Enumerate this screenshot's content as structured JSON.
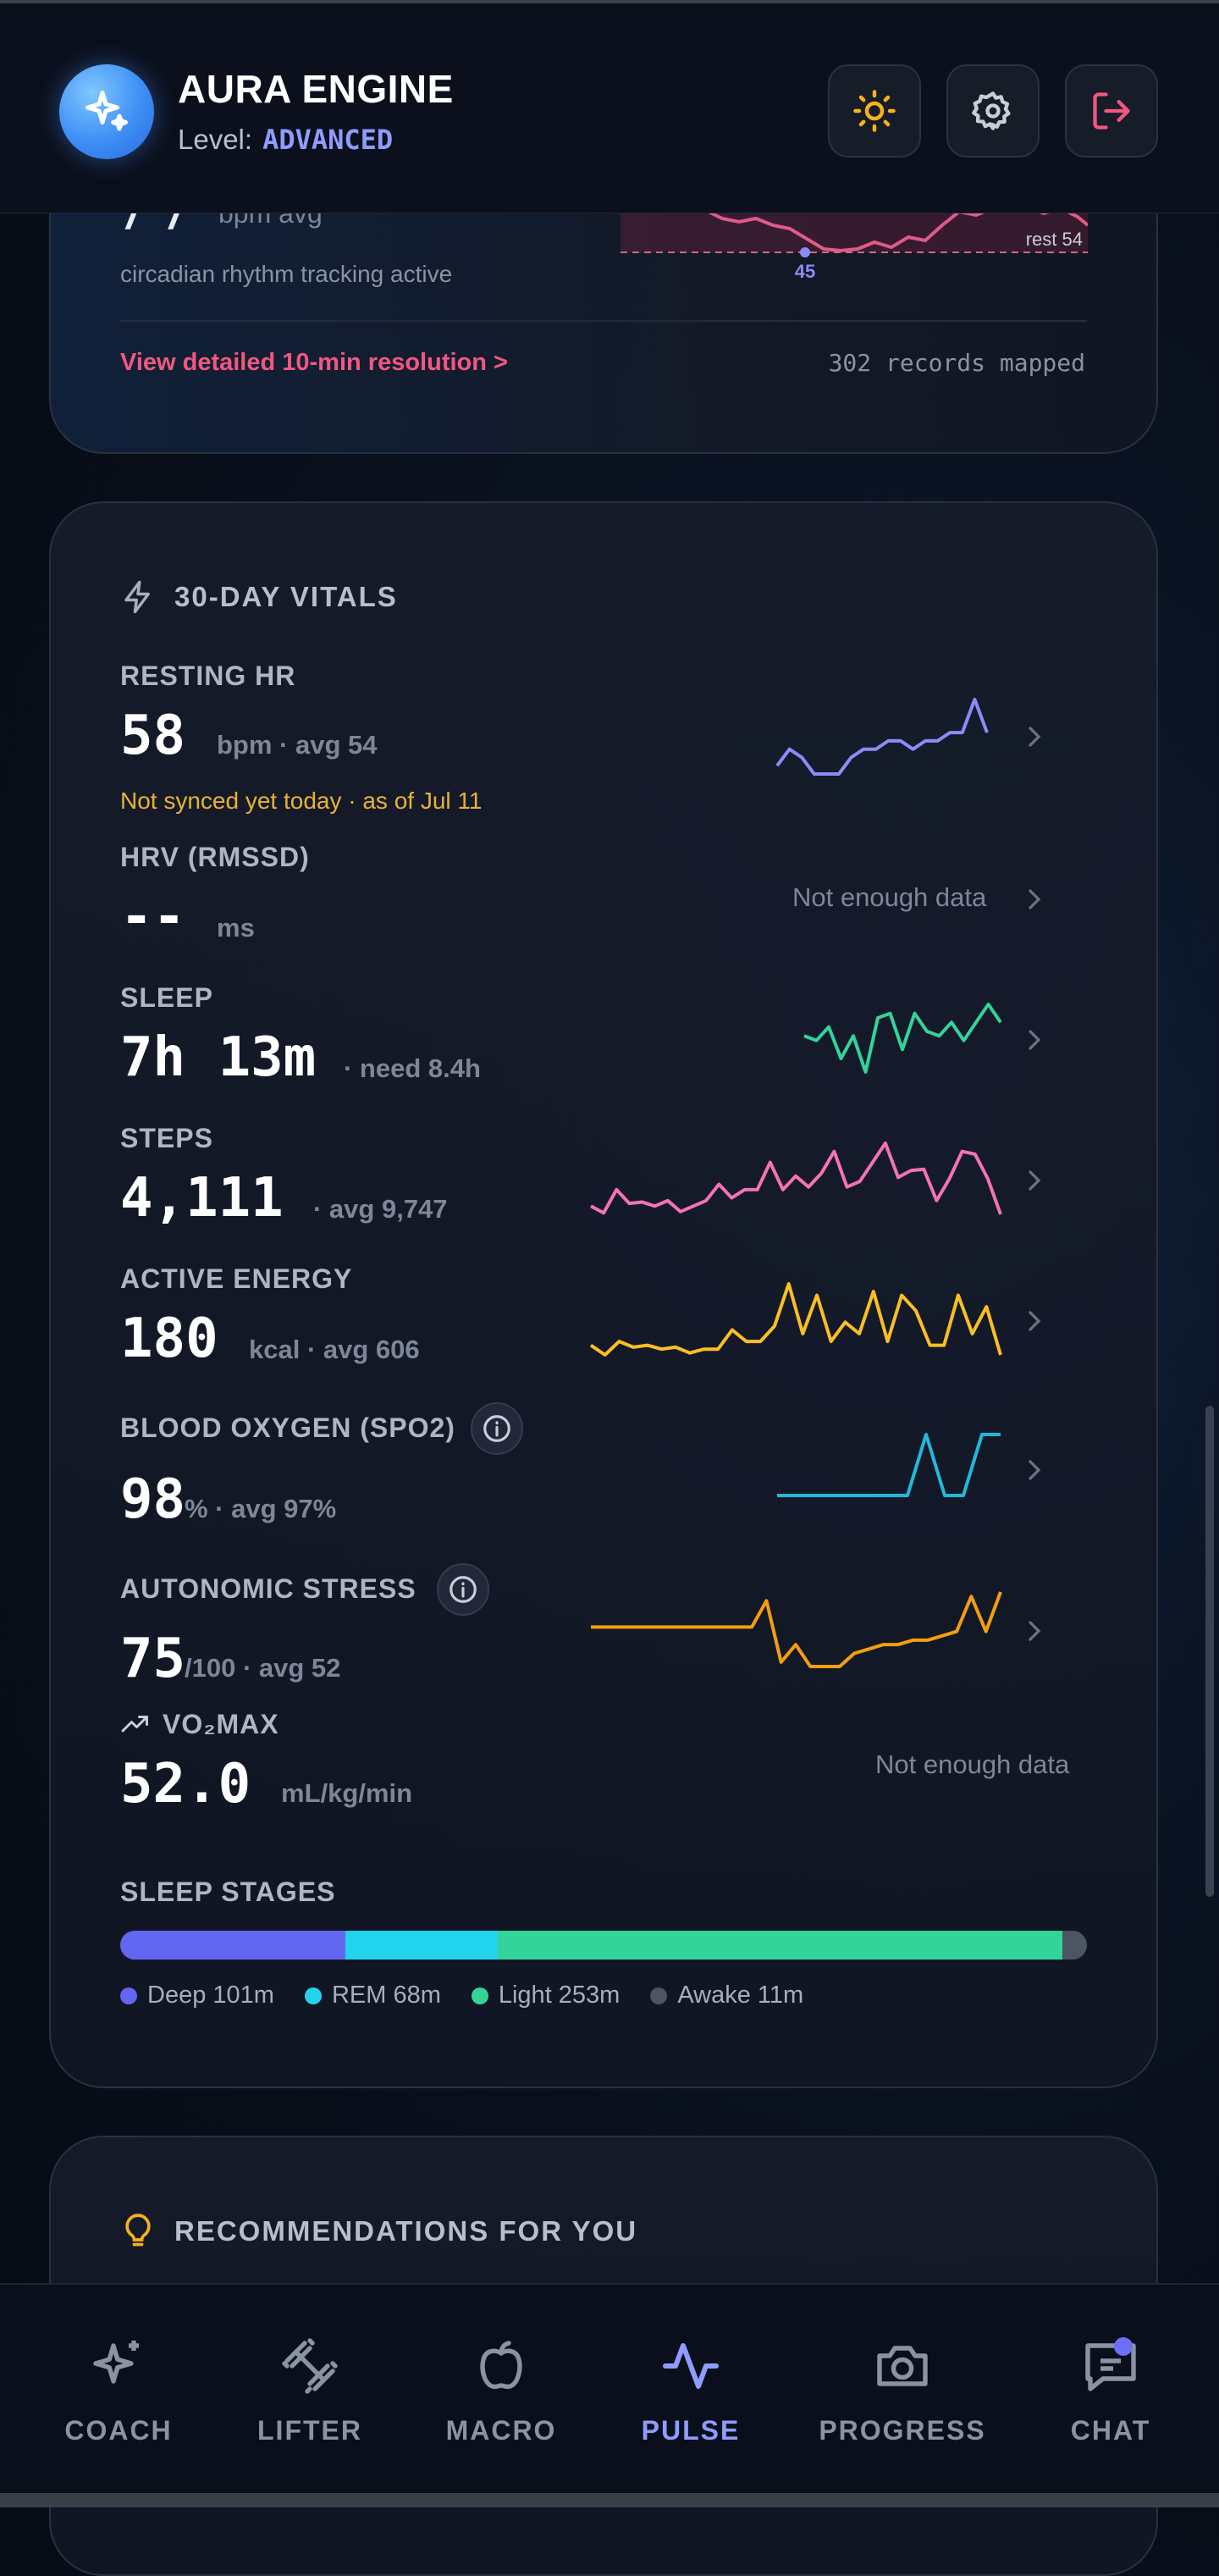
{
  "app": {
    "title": "AURA ENGINE",
    "level_label": "Level:",
    "level_value": "ADVANCED"
  },
  "header_buttons": [
    "sun-icon",
    "gear-icon",
    "logout-icon"
  ],
  "top_card": {
    "partial_value": "7 7",
    "partial_unit": "bpm avg",
    "subtitle": "circadian rhythm tracking active",
    "rest_label": "rest 54",
    "min_marker": "45",
    "detail_link": "View detailed 10-min resolution >",
    "records": "302 records mapped"
  },
  "vitals": {
    "title": "30-DAY VITALS",
    "resting_hr": {
      "label": "RESTING HR",
      "value": "58",
      "unit": "bpm · avg 54",
      "note": "Not synced yet today · as of Jul 11",
      "trend": [
        54,
        56,
        55,
        53,
        53,
        53,
        55,
        56,
        56,
        57,
        57,
        56,
        57,
        57,
        58,
        58,
        62,
        58
      ]
    },
    "hrv": {
      "label": "HRV (RMSSD)",
      "value": "--",
      "unit": "ms",
      "status": "Not enough data"
    },
    "sleep": {
      "label": "SLEEP",
      "value": "7h 13m",
      "unit": "· need 8.4h",
      "trend": [
        6.9,
        6.8,
        7.1,
        6.4,
        6.9,
        6.1,
        7.3,
        7.4,
        6.6,
        7.4,
        7.0,
        6.9,
        7.2,
        6.8,
        7.2,
        7.6,
        7.2
      ]
    },
    "steps": {
      "label": "STEPS",
      "value": "4,111",
      "unit": "· avg 9,747",
      "trend": [
        8,
        7.5,
        9.2,
        8.2,
        8.3,
        8.0,
        8.4,
        7.6,
        8.0,
        8.4,
        9.6,
        8.6,
        9.2,
        9.2,
        11.2,
        9.2,
        10.2,
        9.4,
        10.4,
        12.0,
        9.4,
        9.8,
        11.2,
        12.6,
        10.1,
        10.6,
        10.7,
        8.4,
        10.0,
        12.0,
        11.8,
        10.0,
        7.4
      ]
    },
    "active_energy": {
      "label": "ACTIVE ENERGY",
      "value": "180",
      "unit": "kcal · avg 606",
      "trend": [
        4,
        3.5,
        4.2,
        3.9,
        4.0,
        3.8,
        3.9,
        3.6,
        3.8,
        3.8,
        4.8,
        4.2,
        4.2,
        5.0,
        7.2,
        4.6,
        6.6,
        4.2,
        5.2,
        4.6,
        6.8,
        4.2,
        6.6,
        5.8,
        4.0,
        4.0,
        6.6,
        4.6,
        6.0,
        3.5
      ]
    },
    "spo2": {
      "label": "BLOOD OXYGEN (SPO2)",
      "value": "98",
      "unit": "% · avg 97%",
      "trend": [
        96,
        96,
        96,
        96,
        96,
        96,
        96,
        96,
        98,
        96,
        96,
        98,
        98
      ]
    },
    "stress": {
      "label": "AUTONOMIC STRESS",
      "value": "75",
      "unit": "/100 · avg 52",
      "trend": [
        52,
        52,
        52,
        52,
        52,
        52,
        52,
        52,
        52,
        52,
        52,
        52,
        58,
        44,
        48,
        43,
        43,
        43,
        46,
        47,
        48,
        48,
        49,
        49,
        50,
        51,
        59,
        51,
        60
      ]
    },
    "vo2max": {
      "label": "VO₂MAX",
      "value": "52.0",
      "unit": "mL/kg/min",
      "status": "Not enough data"
    },
    "sleep_stages": {
      "title": "SLEEP STAGES",
      "stages": [
        {
          "name": "Deep",
          "minutes": 101,
          "label": "Deep 101m",
          "color": "#6366f1"
        },
        {
          "name": "REM",
          "minutes": 68,
          "label": "REM 68m",
          "color": "#22d3ee"
        },
        {
          "name": "Light",
          "minutes": 253,
          "label": "Light 253m",
          "color": "#34d399"
        },
        {
          "name": "Awake",
          "minutes": 11,
          "label": "Awake 11m",
          "color": "#4b5563"
        }
      ]
    }
  },
  "recommendations": {
    "title": "RECOMMENDATIONS FOR YOU"
  },
  "nav": [
    {
      "label": "COACH",
      "icon": "sparkles-icon"
    },
    {
      "label": "LIFTER",
      "icon": "dumbbell-icon"
    },
    {
      "label": "MACRO",
      "icon": "apple-icon"
    },
    {
      "label": "PULSE",
      "icon": "pulse-icon",
      "active": true
    },
    {
      "label": "PROGRESS",
      "icon": "camera-icon"
    },
    {
      "label": "CHAT",
      "icon": "chat-icon"
    }
  ],
  "colors": {
    "accent": "#8f9cff",
    "hr": "#8b8cf8",
    "sleep": "#34d399",
    "steps": "#f472b6",
    "energy": "#fbbf24",
    "spo2": "#22b8d8",
    "stress": "#f59e0b"
  }
}
